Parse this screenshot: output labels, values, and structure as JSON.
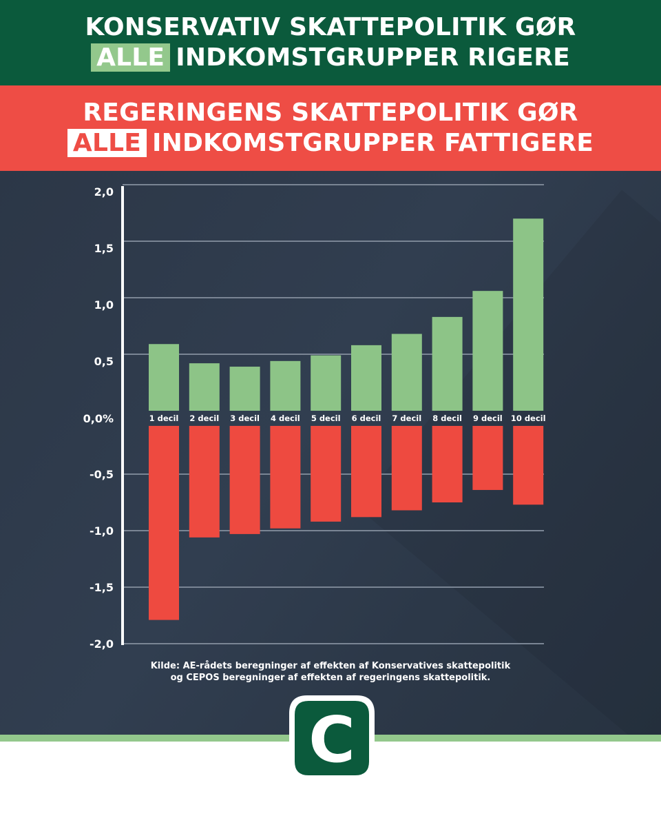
{
  "headline_top": {
    "line1": "KONSERVATIV SKATTEPOLITIK GØR",
    "highlight": "ALLE",
    "line2_rest": "INDKOMSTGRUPPER RIGERE"
  },
  "headline_bottom": {
    "line1": "REGERINGENS SKATTEPOLITIK GØR",
    "highlight": "ALLE",
    "line2_rest": "INDKOMSTGRUPPER FATTIGERE"
  },
  "source": {
    "line1": "Kilde: AE-rådets beregninger af effekten af Konservatives skattepolitik",
    "line2": "og CEPOS beregninger af effekten af regeringens skattepolitik."
  },
  "logo": {
    "letter": "C",
    "icon": "conservative-c-logo-icon"
  },
  "colors": {
    "green_banner": "#0b5a3c",
    "red_banner": "#ee4d45",
    "positive_bar": "#8dc487",
    "negative_bar": "#ee4a40",
    "panel_bg": "#2e3a4b",
    "accent_stripe": "#93c88c"
  },
  "chart_data": {
    "type": "bar",
    "categories": [
      "1 decil",
      "2 decil",
      "3 decil",
      "4 decil",
      "5 decil",
      "6 decil",
      "7 decil",
      "8 decil",
      "9 decil",
      "10 decil"
    ],
    "series": [
      {
        "values": [
          0.59,
          0.42,
          0.39,
          0.44,
          0.49,
          0.58,
          0.68,
          0.83,
          1.06,
          1.7
        ],
        "color": "#8dc487"
      },
      {
        "values": [
          -1.79,
          -1.06,
          -1.03,
          -0.98,
          -0.92,
          -0.88,
          -0.82,
          -0.75,
          -0.64,
          -0.77
        ],
        "color": "#ee4a40"
      }
    ],
    "y_ticks": [
      "2,0",
      "1,5",
      "1,0",
      "0,5",
      "0,0%",
      "-0,5",
      "-1,0",
      "-1,5",
      "-2,0"
    ],
    "ylim": [
      -2.0,
      2.0
    ],
    "grid": true,
    "title": "",
    "xlabel": "",
    "ylabel": ""
  }
}
